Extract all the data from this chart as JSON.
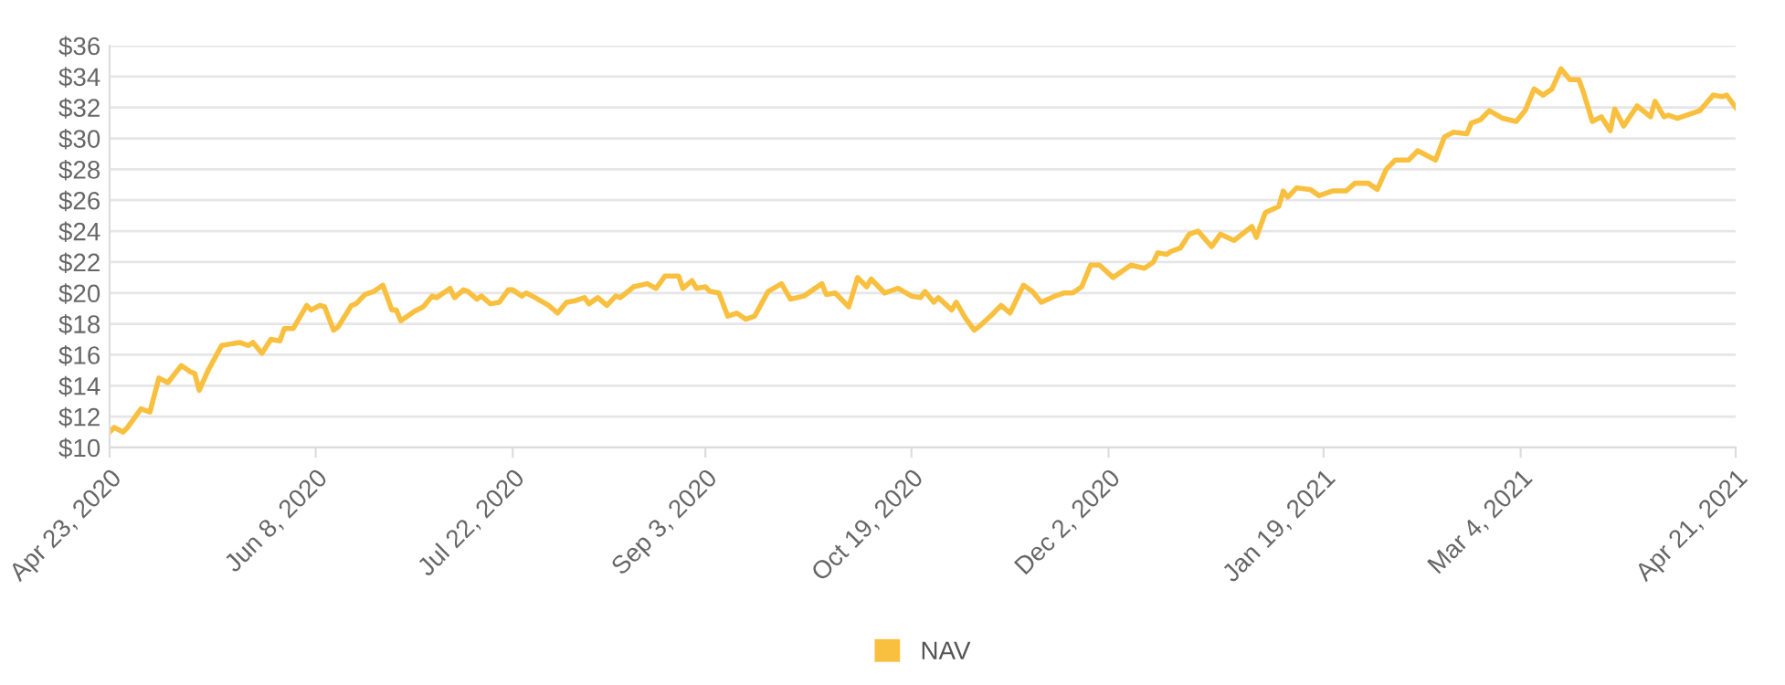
{
  "chart_data": {
    "type": "line",
    "legend": "bottom",
    "grid": "y",
    "marker": "none",
    "line_style": "solid",
    "xlim": [
      "2020-04-23",
      "2021-04-21"
    ],
    "xticks": [
      {
        "value": "2020-04-23",
        "label": "Apr 23, 2020"
      },
      {
        "value": "2020-06-08",
        "label": "Jun 8, 2020"
      },
      {
        "value": "2020-07-22",
        "label": "Jul 22, 2020"
      },
      {
        "value": "2020-09-03",
        "label": "Sep 3, 2020"
      },
      {
        "value": "2020-10-19",
        "label": "Oct 19, 2020"
      },
      {
        "value": "2020-12-02",
        "label": "Dec 2, 2020"
      },
      {
        "value": "2021-01-19",
        "label": "Jan 19, 2021"
      },
      {
        "value": "2021-03-04",
        "label": "Mar 4, 2021"
      },
      {
        "value": "2021-04-21",
        "label": "Apr 21, 2021"
      }
    ],
    "ylim": [
      10,
      36
    ],
    "yticks": [
      {
        "value": 10,
        "label": "$10"
      },
      {
        "value": 12,
        "label": "$12"
      },
      {
        "value": 14,
        "label": "$14"
      },
      {
        "value": 16,
        "label": "$16"
      },
      {
        "value": 18,
        "label": "$18"
      },
      {
        "value": 20,
        "label": "$20"
      },
      {
        "value": 22,
        "label": "$22"
      },
      {
        "value": 24,
        "label": "$24"
      },
      {
        "value": 26,
        "label": "$26"
      },
      {
        "value": 28,
        "label": "$28"
      },
      {
        "value": 30,
        "label": "$30"
      },
      {
        "value": 32,
        "label": "$32"
      },
      {
        "value": 34,
        "label": "$34"
      },
      {
        "value": 36,
        "label": "$36"
      }
    ],
    "x": [
      "2020-04-23",
      "2020-04-24",
      "2020-04-26",
      "2020-04-27",
      "2020-04-30",
      "2020-05-02",
      "2020-05-04",
      "2020-05-06",
      "2020-05-09",
      "2020-05-11",
      "2020-05-12",
      "2020-05-13",
      "2020-05-15",
      "2020-05-18",
      "2020-05-20",
      "2020-05-22",
      "2020-05-24",
      "2020-05-25",
      "2020-05-27",
      "2020-05-29",
      "2020-05-31",
      "2020-06-01",
      "2020-06-03",
      "2020-06-04",
      "2020-06-06",
      "2020-06-07",
      "2020-06-09",
      "2020-06-10",
      "2020-06-12",
      "2020-06-13",
      "2020-06-16",
      "2020-06-17",
      "2020-06-19",
      "2020-06-21",
      "2020-06-23",
      "2020-06-25",
      "2020-06-26",
      "2020-06-27",
      "2020-06-30",
      "2020-07-02",
      "2020-07-04",
      "2020-07-05",
      "2020-07-08",
      "2020-07-09",
      "2020-07-11",
      "2020-07-12",
      "2020-07-14",
      "2020-07-15",
      "2020-07-17",
      "2020-07-19",
      "2020-07-21",
      "2020-07-22",
      "2020-07-24",
      "2020-07-25",
      "2020-07-27",
      "2020-07-30",
      "2020-08-01",
      "2020-08-03",
      "2020-08-05",
      "2020-08-07",
      "2020-08-08",
      "2020-08-10",
      "2020-08-12",
      "2020-08-14",
      "2020-08-15",
      "2020-08-18",
      "2020-08-21",
      "2020-08-23",
      "2020-08-25",
      "2020-08-28",
      "2020-08-29",
      "2020-08-31",
      "2020-09-01",
      "2020-09-03",
      "2020-09-04",
      "2020-09-06",
      "2020-09-08",
      "2020-09-10",
      "2020-09-12",
      "2020-09-14",
      "2020-09-17",
      "2020-09-20",
      "2020-09-22",
      "2020-09-25",
      "2020-09-29",
      "2020-09-30",
      "2020-10-02",
      "2020-10-05",
      "2020-10-07",
      "2020-10-09",
      "2020-10-10",
      "2020-10-13",
      "2020-10-16",
      "2020-10-19",
      "2020-10-21",
      "2020-10-22",
      "2020-10-24",
      "2020-10-25",
      "2020-10-28",
      "2020-10-29",
      "2020-10-31",
      "2020-11-02",
      "2020-11-03",
      "2020-11-06",
      "2020-11-08",
      "2020-11-10",
      "2020-11-13",
      "2020-11-15",
      "2020-11-17",
      "2020-11-20",
      "2020-11-22",
      "2020-11-24",
      "2020-11-26",
      "2020-11-28",
      "2020-11-30",
      "2020-12-03",
      "2020-12-07",
      "2020-12-10",
      "2020-12-12",
      "2020-12-13",
      "2020-12-15",
      "2020-12-16",
      "2020-12-18",
      "2020-12-20",
      "2020-12-22",
      "2020-12-25",
      "2020-12-27",
      "2020-12-30",
      "2021-01-03",
      "2021-01-04",
      "2021-01-06",
      "2021-01-09",
      "2021-01-10",
      "2021-01-11",
      "2021-01-13",
      "2021-01-16",
      "2021-01-18",
      "2021-01-21",
      "2021-01-24",
      "2021-01-26",
      "2021-01-29",
      "2021-01-31",
      "2021-02-02",
      "2021-02-04",
      "2021-02-07",
      "2021-02-09",
      "2021-02-13",
      "2021-02-15",
      "2021-02-17",
      "2021-02-20",
      "2021-02-21",
      "2021-02-23",
      "2021-02-25",
      "2021-02-28",
      "2021-03-03",
      "2021-03-05",
      "2021-03-07",
      "2021-03-09",
      "2021-03-11",
      "2021-03-13",
      "2021-03-15",
      "2021-03-17",
      "2021-03-18",
      "2021-03-20",
      "2021-03-22",
      "2021-03-24",
      "2021-03-25",
      "2021-03-27",
      "2021-03-30",
      "2021-04-02",
      "2021-04-03",
      "2021-04-05",
      "2021-04-06",
      "2021-04-08",
      "2021-04-13",
      "2021-04-16",
      "2021-04-18",
      "2021-04-19",
      "2021-04-21"
    ],
    "series": [
      {
        "name": "NAV",
        "color": "#f8c03e",
        "values": [
          11.0,
          11.3,
          11.0,
          11.3,
          12.5,
          12.3,
          14.5,
          14.2,
          15.3,
          14.9,
          14.8,
          13.7,
          15.0,
          16.6,
          16.7,
          16.8,
          16.6,
          16.8,
          16.1,
          17.0,
          16.9,
          17.7,
          17.7,
          18.2,
          19.2,
          18.9,
          19.2,
          19.1,
          17.6,
          17.8,
          19.2,
          19.3,
          19.9,
          20.1,
          20.5,
          18.9,
          18.9,
          18.2,
          18.8,
          19.1,
          19.8,
          19.7,
          20.3,
          19.7,
          20.2,
          20.1,
          19.6,
          19.8,
          19.3,
          19.4,
          20.2,
          20.2,
          19.8,
          20.0,
          19.7,
          19.2,
          18.7,
          19.4,
          19.5,
          19.7,
          19.3,
          19.7,
          19.2,
          19.8,
          19.7,
          20.4,
          20.6,
          20.3,
          21.1,
          21.1,
          20.3,
          20.8,
          20.3,
          20.4,
          20.1,
          20.0,
          18.5,
          18.7,
          18.3,
          18.5,
          20.1,
          20.6,
          19.6,
          19.8,
          20.6,
          19.9,
          20.0,
          19.1,
          21.0,
          20.4,
          20.9,
          20.0,
          20.3,
          19.8,
          19.7,
          20.1,
          19.4,
          19.7,
          18.9,
          19.4,
          18.4,
          17.6,
          17.8,
          18.6,
          19.2,
          18.7,
          20.5,
          20.1,
          19.4,
          19.8,
          20.0,
          20.0,
          20.4,
          21.8,
          21.8,
          21.0,
          21.8,
          21.6,
          22.0,
          22.6,
          22.5,
          22.7,
          22.9,
          23.8,
          24.0,
          23.0,
          23.8,
          23.4,
          24.3,
          23.6,
          25.2,
          25.6,
          26.6,
          26.2,
          26.8,
          26.7,
          26.3,
          26.6,
          26.6,
          27.1,
          27.1,
          26.7,
          28.0,
          28.6,
          28.6,
          29.2,
          28.6,
          30.1,
          30.4,
          30.3,
          31.0,
          31.2,
          31.8,
          31.3,
          31.1,
          31.8,
          33.2,
          32.8,
          33.2,
          34.5,
          33.8,
          33.8,
          33.0,
          31.1,
          31.4,
          30.5,
          31.9,
          30.8,
          32.1,
          31.4,
          32.4,
          31.4,
          31.5,
          31.3,
          31.8,
          32.8,
          32.7,
          32.8,
          32.0
        ]
      }
    ]
  }
}
